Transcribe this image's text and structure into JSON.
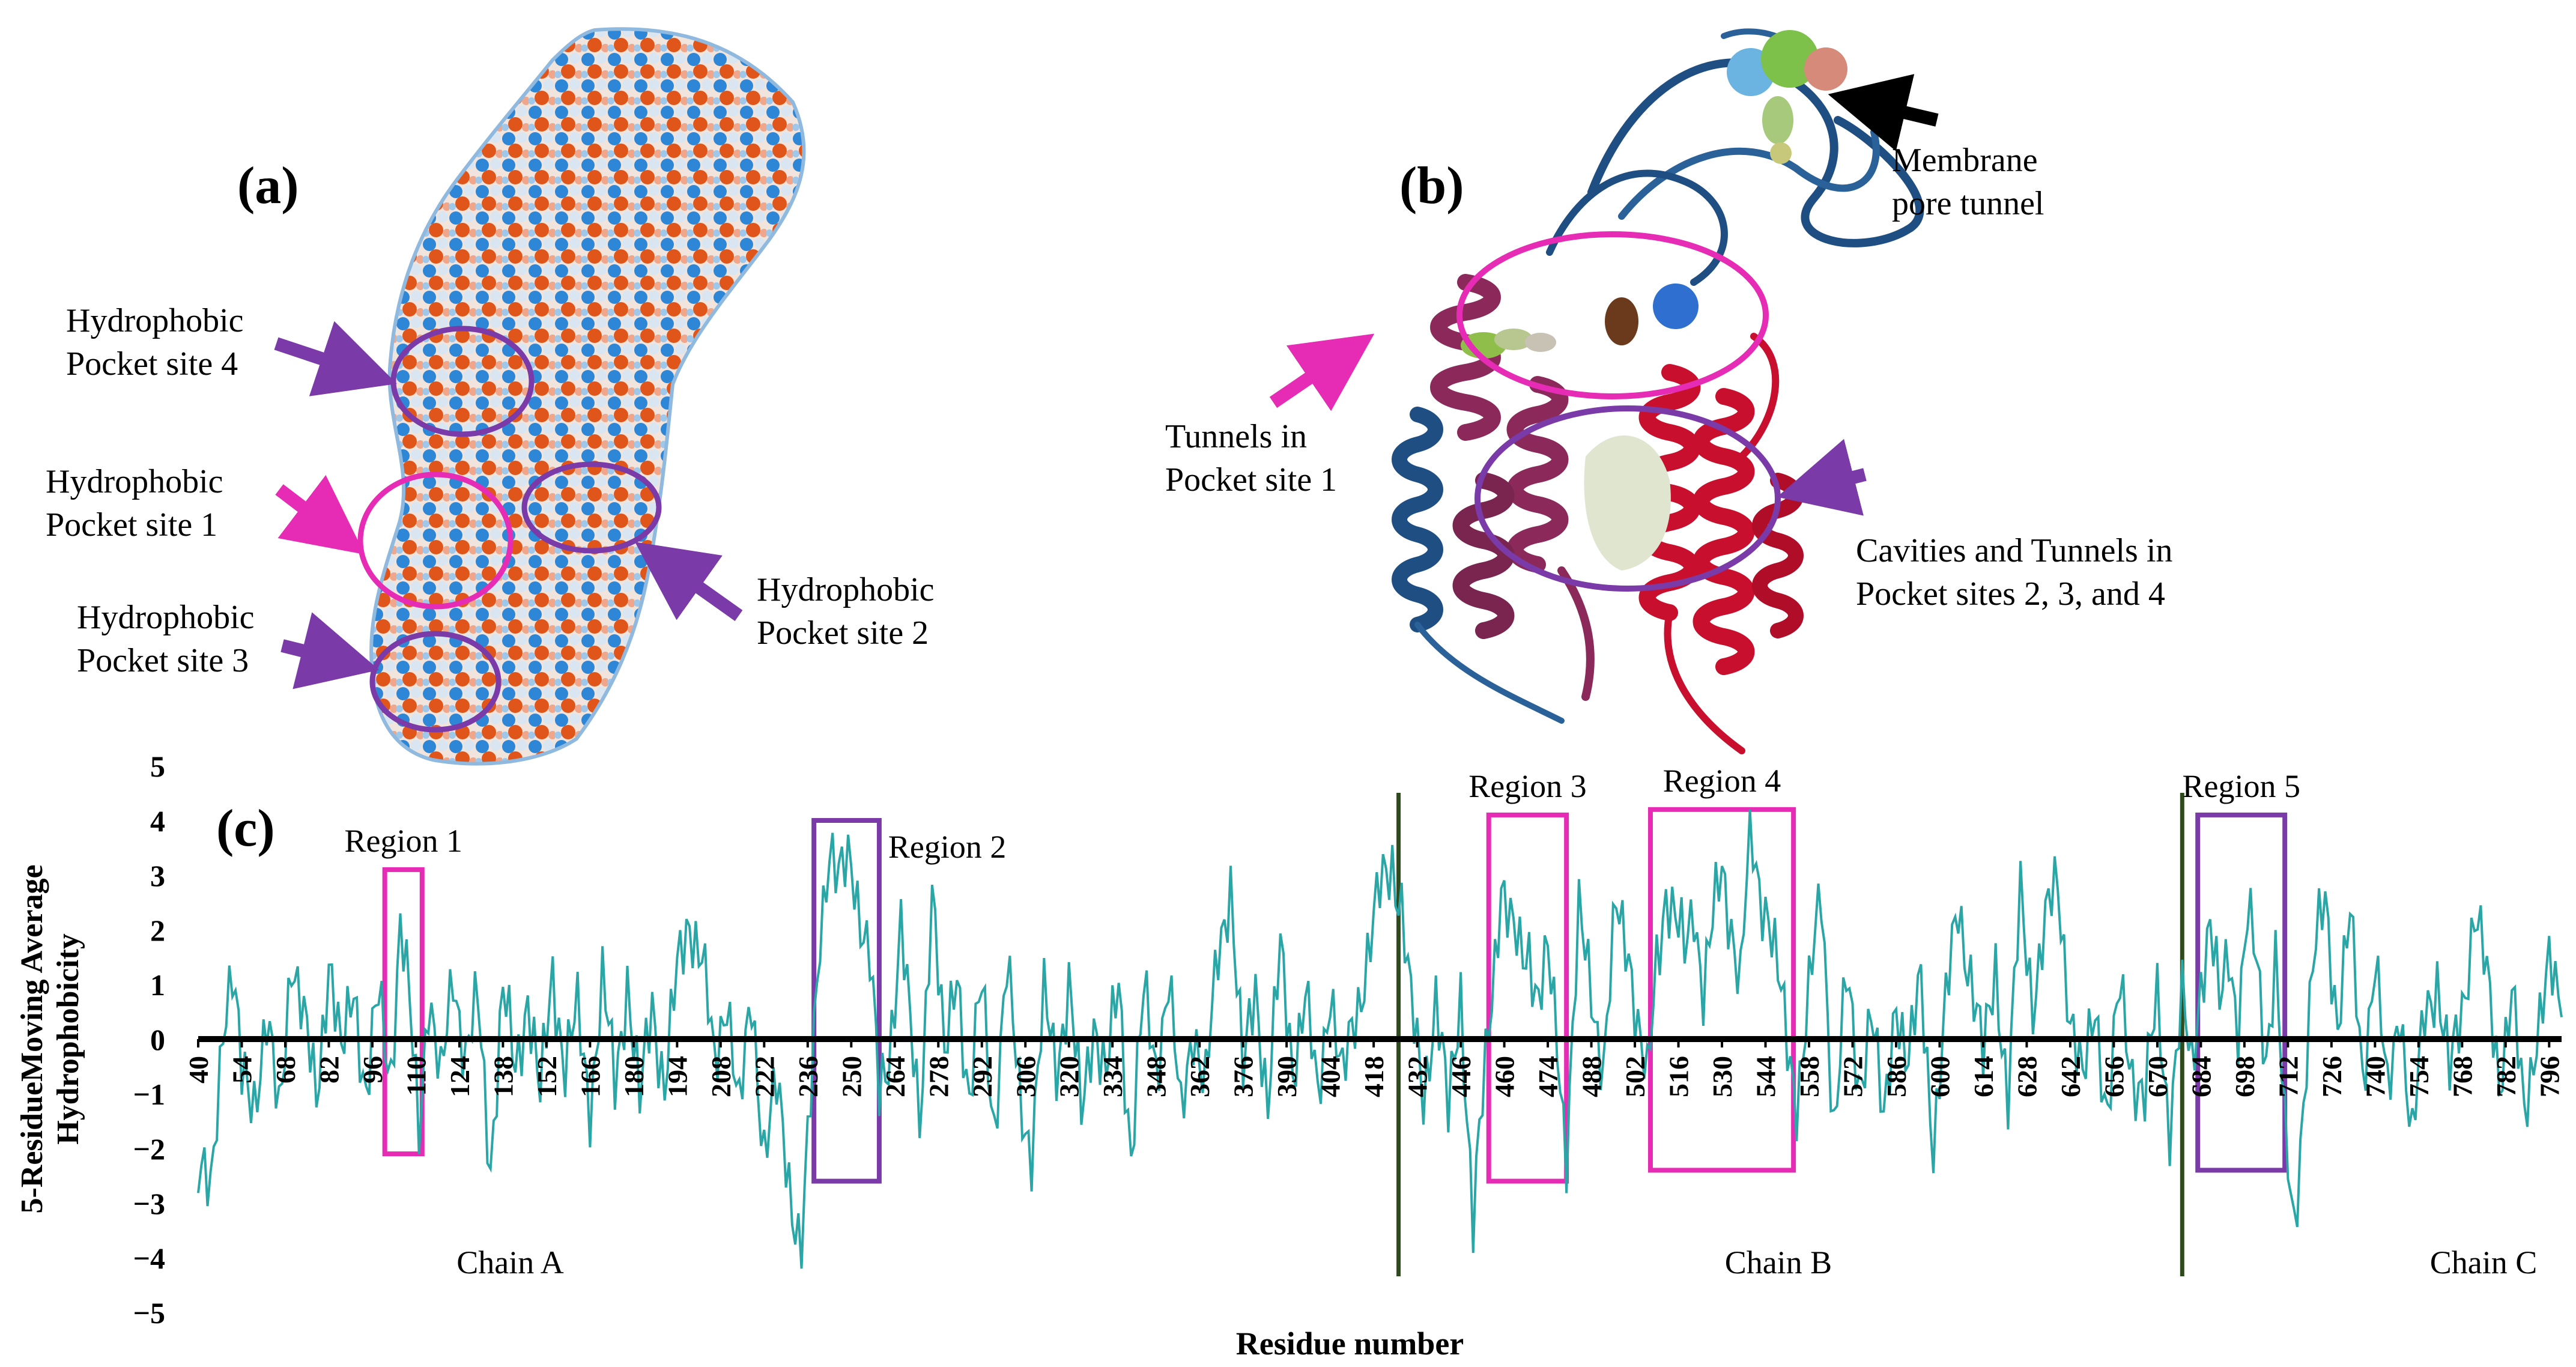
{
  "panel_a": {
    "label": "(a)",
    "pockets": [
      {
        "id": "site4",
        "line1": "Hydrophobic",
        "line2": "Pocket site 4"
      },
      {
        "id": "site1",
        "line1": "Hydrophobic",
        "line2": "Pocket site 1"
      },
      {
        "id": "site3",
        "line1": "Hydrophobic",
        "line2": "Pocket site 3"
      },
      {
        "id": "site2",
        "line1": "Hydrophobic",
        "line2": "Pocket site 2"
      }
    ]
  },
  "panel_b": {
    "label": "(b)",
    "membrane": {
      "line1": "Membrane",
      "line2": "pore tunnel"
    },
    "tunnels": {
      "line1": "Tunnels in",
      "line2": "Pocket site 1"
    },
    "cavities": {
      "line1": "Cavities and Tunnels in",
      "line2": "Pocket sites 2, 3, and 4"
    }
  },
  "panel_c": {
    "label": "(c)",
    "chains": [
      "Chain A",
      "Chain B",
      "Chain C"
    ],
    "regions": [
      "Region 1",
      "Region 2",
      "Region 3",
      "Region 4",
      "Region 5"
    ]
  },
  "colors": {
    "line": "#2aa6a6",
    "magenta": "#e62cb4",
    "purple": "#7a3aa8",
    "chain_divider": "#2f4a1c",
    "hydrophobic": "#e0561a",
    "hydrophilic": "#2e86d6"
  },
  "chart_data": {
    "type": "line",
    "title": "",
    "xlabel": "Residue number",
    "ylabel_line1": "5-ResidueMoving Average",
    "ylabel_line2": "Hydrophobicity",
    "xlim": [
      40,
      800
    ],
    "ylim": [
      -5,
      5
    ],
    "yticks": [
      5,
      4,
      3,
      2,
      1,
      0,
      -1,
      -2,
      -3,
      -4,
      -5
    ],
    "xticks": [
      40,
      54,
      68,
      82,
      96,
      110,
      124,
      138,
      152,
      166,
      180,
      194,
      208,
      222,
      236,
      250,
      264,
      278,
      292,
      306,
      320,
      334,
      348,
      362,
      376,
      390,
      404,
      418,
      432,
      446,
      460,
      474,
      488,
      502,
      516,
      530,
      544,
      558,
      572,
      586,
      600,
      614,
      628,
      642,
      656,
      670,
      684,
      698,
      712,
      726,
      740,
      754,
      768,
      782,
      796
    ],
    "chain_boundaries": [
      426,
      678
    ],
    "chain_centers": [
      150,
      540,
      800
    ],
    "regions": [
      {
        "name": "Region 1",
        "x": [
          100,
          112
        ],
        "y": [
          -2.1,
          3.1
        ],
        "color": "magenta"
      },
      {
        "name": "Region 2",
        "x": [
          238,
          259
        ],
        "y": [
          -2.6,
          4.0
        ],
        "color": "purple"
      },
      {
        "name": "Region 3",
        "x": [
          455,
          480
        ],
        "y": [
          -2.6,
          4.1
        ],
        "color": "magenta"
      },
      {
        "name": "Region 4",
        "x": [
          507,
          553
        ],
        "y": [
          -2.4,
          4.2
        ],
        "color": "magenta"
      },
      {
        "name": "Region 5",
        "x": [
          683,
          711
        ],
        "y": [
          -2.4,
          4.1
        ],
        "color": "purple"
      }
    ],
    "anchors": [
      [
        40,
        -2.4
      ],
      [
        44,
        -3.0
      ],
      [
        48,
        0.5
      ],
      [
        51,
        1.2
      ],
      [
        54,
        -0.8
      ],
      [
        58,
        -1.0
      ],
      [
        62,
        0.3
      ],
      [
        66,
        -1.5
      ],
      [
        70,
        1.7
      ],
      [
        74,
        0.2
      ],
      [
        78,
        -1.0
      ],
      [
        82,
        1.5
      ],
      [
        86,
        -0.5
      ],
      [
        90,
        1.2
      ],
      [
        94,
        -1.2
      ],
      [
        98,
        0.8
      ],
      [
        102,
        -0.5
      ],
      [
        105,
        2.0
      ],
      [
        108,
        0.5
      ],
      [
        111,
        -1.5
      ],
      [
        114,
        0.9
      ],
      [
        118,
        -1.0
      ],
      [
        122,
        1.4
      ],
      [
        126,
        -0.4
      ],
      [
        130,
        0.6
      ],
      [
        134,
        -2.2
      ],
      [
        138,
        0.8
      ],
      [
        142,
        -0.6
      ],
      [
        146,
        0.9
      ],
      [
        150,
        -1.2
      ],
      [
        154,
        1.3
      ],
      [
        158,
        -0.5
      ],
      [
        162,
        0.4
      ],
      [
        166,
        -1.1
      ],
      [
        170,
        1.0
      ],
      [
        174,
        -0.9
      ],
      [
        178,
        1.2
      ],
      [
        182,
        -1.3
      ],
      [
        186,
        0.7
      ],
      [
        190,
        -0.8
      ],
      [
        194,
        1.1
      ],
      [
        198,
        2.3
      ],
      [
        202,
        1.5
      ],
      [
        206,
        -0.6
      ],
      [
        210,
        1.0
      ],
      [
        214,
        -1.5
      ],
      [
        218,
        0.8
      ],
      [
        222,
        -2.0
      ],
      [
        226,
        -1.0
      ],
      [
        230,
        -2.5
      ],
      [
        234,
        -3.9
      ],
      [
        237,
        -1.2
      ],
      [
        240,
        2.0
      ],
      [
        243,
        3.7
      ],
      [
        246,
        2.8
      ],
      [
        250,
        3.2
      ],
      [
        253,
        2.4
      ],
      [
        256,
        1.5
      ],
      [
        259,
        -1.2
      ],
      [
        262,
        -0.3
      ],
      [
        266,
        2.2
      ],
      [
        269,
        0.0
      ],
      [
        272,
        -1.5
      ],
      [
        276,
        2.9
      ],
      [
        280,
        -0.6
      ],
      [
        284,
        1.5
      ],
      [
        288,
        -1.3
      ],
      [
        292,
        1.0
      ],
      [
        296,
        -1.5
      ],
      [
        300,
        1.2
      ],
      [
        304,
        -0.9
      ],
      [
        308,
        -2.0
      ],
      [
        312,
        0.6
      ],
      [
        316,
        -0.4
      ],
      [
        320,
        1.0
      ],
      [
        324,
        -1.5
      ],
      [
        328,
        0.5
      ],
      [
        332,
        -0.8
      ],
      [
        336,
        1.0
      ],
      [
        340,
        -2.0
      ],
      [
        344,
        0.7
      ],
      [
        348,
        -0.5
      ],
      [
        352,
        1.2
      ],
      [
        356,
        -1.6
      ],
      [
        360,
        0.4
      ],
      [
        364,
        -0.9
      ],
      [
        368,
        1.5
      ],
      [
        372,
        3.0
      ],
      [
        376,
        -0.8
      ],
      [
        380,
        1.0
      ],
      [
        384,
        -1.1
      ],
      [
        388,
        1.5
      ],
      [
        392,
        -0.4
      ],
      [
        396,
        0.8
      ],
      [
        400,
        -1.2
      ],
      [
        404,
        1.1
      ],
      [
        408,
        -0.9
      ],
      [
        412,
        0.4
      ],
      [
        416,
        1.6
      ],
      [
        420,
        2.6
      ],
      [
        424,
        3.3
      ],
      [
        427,
        2.5
      ],
      [
        430,
        0.5
      ],
      [
        434,
        -1.0
      ],
      [
        438,
        0.8
      ],
      [
        442,
        -1.5
      ],
      [
        446,
        1.0
      ],
      [
        450,
        -3.5
      ],
      [
        453,
        -1.2
      ],
      [
        456,
        1.0
      ],
      [
        459,
        2.9
      ],
      [
        462,
        1.9
      ],
      [
        465,
        1.6
      ],
      [
        468,
        1.8
      ],
      [
        471,
        0.6
      ],
      [
        474,
        1.4
      ],
      [
        477,
        0.1
      ],
      [
        480,
        -2.0
      ],
      [
        484,
        2.1
      ],
      [
        488,
        1.0
      ],
      [
        492,
        -0.5
      ],
      [
        496,
        2.3
      ],
      [
        500,
        1.8
      ],
      [
        503,
        0.2
      ],
      [
        506,
        -1.0
      ],
      [
        509,
        1.5
      ],
      [
        512,
        2.8
      ],
      [
        515,
        2.1
      ],
      [
        518,
        1.5
      ],
      [
        521,
        2.6
      ],
      [
        524,
        0.9
      ],
      [
        527,
        2.0
      ],
      [
        530,
        3.1
      ],
      [
        533,
        2.2
      ],
      [
        536,
        1.0
      ],
      [
        539,
        3.7
      ],
      [
        542,
        2.8
      ],
      [
        545,
        2.4
      ],
      [
        548,
        1.1
      ],
      [
        551,
        -0.2
      ],
      [
        554,
        -1.0
      ],
      [
        558,
        0.8
      ],
      [
        562,
        2.6
      ],
      [
        566,
        -1.5
      ],
      [
        570,
        1.0
      ],
      [
        574,
        -0.9
      ],
      [
        578,
        0.7
      ],
      [
        582,
        -1.8
      ],
      [
        586,
        0.9
      ],
      [
        590,
        -0.5
      ],
      [
        594,
        1.0
      ],
      [
        598,
        -1.8
      ],
      [
        602,
        0.5
      ],
      [
        606,
        2.5
      ],
      [
        610,
        1.2
      ],
      [
        614,
        -0.5
      ],
      [
        618,
        1.5
      ],
      [
        622,
        -1.2
      ],
      [
        626,
        2.6
      ],
      [
        630,
        0.8
      ],
      [
        634,
        2.0
      ],
      [
        638,
        2.9
      ],
      [
        642,
        0.5
      ],
      [
        646,
        -1.0
      ],
      [
        650,
        0.8
      ],
      [
        654,
        -1.5
      ],
      [
        658,
        0.9
      ],
      [
        662,
        -0.5
      ],
      [
        666,
        -1.2
      ],
      [
        670,
        0.8
      ],
      [
        674,
        -1.5
      ],
      [
        678,
        0.6
      ],
      [
        681,
        -0.5
      ],
      [
        684,
        1.2
      ],
      [
        687,
        2.0
      ],
      [
        690,
        0.5
      ],
      [
        693,
        1.8
      ],
      [
        696,
        0.3
      ],
      [
        699,
        2.1
      ],
      [
        702,
        1.4
      ],
      [
        705,
        -0.2
      ],
      [
        708,
        1.5
      ],
      [
        711,
        -1.9
      ],
      [
        714,
        -3.4
      ],
      [
        717,
        -1.0
      ],
      [
        720,
        1.2
      ],
      [
        724,
        2.6
      ],
      [
        728,
        0.4
      ],
      [
        732,
        2.1
      ],
      [
        736,
        -0.6
      ],
      [
        740,
        1.5
      ],
      [
        744,
        -1.2
      ],
      [
        748,
        0.8
      ],
      [
        752,
        -2.0
      ],
      [
        756,
        0.5
      ],
      [
        760,
        1.2
      ],
      [
        764,
        -0.8
      ],
      [
        768,
        0.6
      ],
      [
        772,
        2.4
      ],
      [
        776,
        1.0
      ],
      [
        780,
        -0.6
      ],
      [
        784,
        0.8
      ],
      [
        788,
        -1.5
      ],
      [
        792,
        0.3
      ],
      [
        796,
        1.2
      ],
      [
        800,
        0.4
      ]
    ]
  }
}
